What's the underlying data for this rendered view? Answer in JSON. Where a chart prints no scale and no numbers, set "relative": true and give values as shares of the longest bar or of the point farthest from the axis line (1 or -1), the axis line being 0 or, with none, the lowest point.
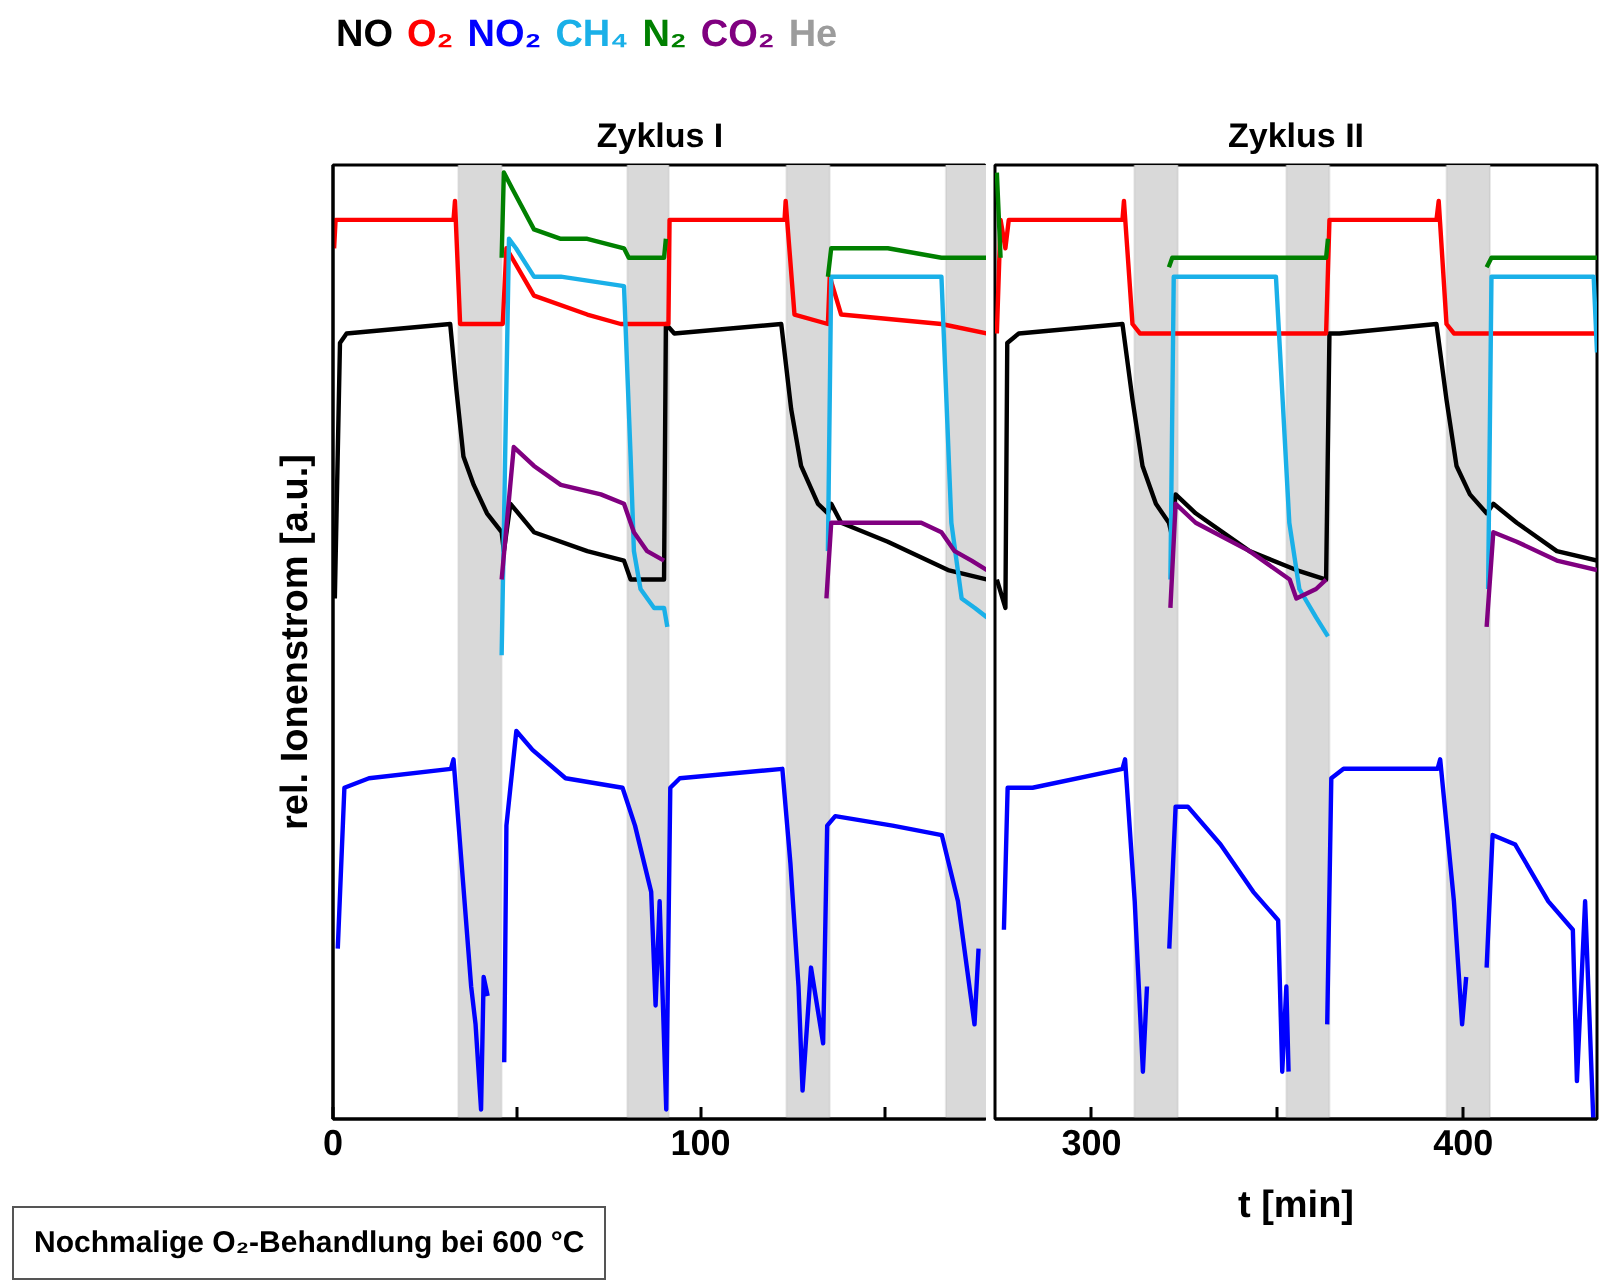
{
  "chart_data": [
    {
      "type": "line",
      "title": "Zyklus I",
      "ylabel": "rel. Ionenstrom [a.u.]",
      "relative": true,
      "legend": "top left",
      "xlim": [
        0,
        178
      ],
      "xticks": [
        0,
        {
          "value": 50,
          "label": null
        },
        100,
        {
          "value": 150,
          "label": null
        }
      ],
      "annotations": [
        "Nochmalige O₂-Behandlung bei 600 °C"
      ],
      "bands": [
        {
          "axis": "x",
          "from": 34.1,
          "to": 45.9,
          "label": "He",
          "color": "#d9d9d9"
        },
        {
          "axis": "x",
          "from": 80.1,
          "to": 91.4,
          "color": "#d9d9d9"
        },
        {
          "axis": "x",
          "from": 123.4,
          "to": 135.2,
          "color": "#d9d9d9"
        },
        {
          "axis": "x",
          "from": 166.8,
          "to": 178,
          "color": "#d9d9d9"
        }
      ],
      "series": [
        {
          "name": "NO",
          "color": "#000000",
          "x": [
            0.5,
            1.9,
            3.7,
            31.9,
            33.6,
            35.5,
            38.3,
            41.9,
            45.9,
            46.5,
            48.3,
            54.7,
            69.2,
            79.2,
            81,
            90.1,
            90.6,
            92.9,
            122,
            124.7,
            127.4,
            132,
            134.7,
            135.6,
            138.3,
            151,
            167.4,
            178
          ],
          "values": [
            0.55,
            0.82,
            0.83,
            0.84,
            0.77,
            0.7,
            0.67,
            0.64,
            0.62,
            0.6,
            0.65,
            0.62,
            0.6,
            0.59,
            0.57,
            0.57,
            0.84,
            0.83,
            0.84,
            0.75,
            0.69,
            0.65,
            0.64,
            0.65,
            0.63,
            0.61,
            0.58,
            0.57
          ]
        },
        {
          "name": "O₂",
          "color": "#ff0000",
          "x": [
            0.3,
            0.7,
            32.8,
            33.2,
            34.6,
            46.2,
            47.2,
            54.7,
            69.2,
            78.3,
            81.9,
            91.3,
            91.6,
            92.9,
            122.9,
            123.2,
            125.6,
            134.7,
            135.2,
            138.3,
            165.6,
            178
          ],
          "values": [
            0.92,
            0.95,
            0.95,
            0.97,
            0.84,
            0.84,
            0.92,
            0.87,
            0.85,
            0.84,
            0.84,
            0.84,
            0.95,
            0.95,
            0.95,
            0.97,
            0.85,
            0.84,
            0.89,
            0.85,
            0.84,
            0.83
          ]
        },
        {
          "name": "NO₂",
          "color": "#0000ff",
          "x": [
            1.3,
            3.1,
            9.8,
            32.1,
            32.8,
            35.4,
            37.6,
            38.8,
            40.3,
            41,
            42.1,
            44,
            46.6,
            47.2,
            49.9,
            54.3,
            63.3,
            78.8,
            82.2,
            86.6,
            87.8,
            88.9,
            90.7,
            91.8,
            94.4,
            122.3,
            124.5,
            126.7,
            127.8,
            130.1,
            133.4,
            134.5,
            136.7,
            152.3,
            165.7,
            170.1,
            174.6,
            175.7
          ],
          "values": [
            0.18,
            0.35,
            0.36,
            0.37,
            0.38,
            0.25,
            0.14,
            0.1,
            0.01,
            0.15,
            0.13,
            null,
            0.06,
            0.31,
            0.41,
            0.39,
            0.36,
            0.35,
            0.31,
            0.24,
            0.12,
            0.23,
            0.01,
            0.35,
            0.36,
            0.37,
            0.27,
            0.14,
            0.03,
            0.16,
            0.08,
            0.31,
            0.32,
            0.31,
            0.3,
            0.23,
            0.1,
            0.18
          ]
        },
        {
          "name": "CH₄",
          "color": "#1ab0e8",
          "x": [
            45.9,
            47.9,
            49.8,
            54.7,
            62,
            79.2,
            81,
            81.9,
            83.7,
            87.4,
            90.1,
            91,
            100,
            134.7,
            135.6,
            165.6,
            168.3,
            171.1,
            174.7,
            178
          ],
          "values": [
            0.49,
            0.93,
            0.92,
            0.89,
            0.89,
            0.88,
            0.7,
            0.6,
            0.56,
            0.54,
            0.54,
            0.52,
            null,
            0.6,
            0.89,
            0.89,
            0.63,
            0.55,
            0.54,
            0.53
          ]
        },
        {
          "name": "N₂",
          "color": "#008000",
          "x": [
            45.9,
            46.5,
            49.2,
            54.7,
            62,
            69.2,
            79.2,
            80.5,
            90.1,
            90.6,
            100,
            134.7,
            135.6,
            151,
            165.6,
            167.4,
            178
          ],
          "values": [
            0.91,
            1.0,
            0.98,
            0.94,
            0.93,
            0.93,
            0.92,
            0.91,
            0.91,
            0.93,
            null,
            0.89,
            0.92,
            0.92,
            0.91,
            0.91,
            0.91
          ]
        },
        {
          "name": "CO₂",
          "color": "#800080",
          "x": [
            45.9,
            49.2,
            54.7,
            62,
            72.9,
            79.2,
            81.9,
            85.5,
            90.1,
            100,
            134.3,
            135.6,
            142,
            160.1,
            165.6,
            169.2,
            173.8,
            178
          ],
          "values": [
            0.57,
            0.71,
            0.69,
            0.67,
            0.66,
            0.65,
            0.62,
            0.6,
            0.59,
            null,
            0.55,
            0.63,
            0.63,
            0.63,
            0.62,
            0.6,
            0.59,
            0.58
          ]
        }
      ]
    },
    {
      "type": "line",
      "title": "Zyklus II",
      "xlabel": "t [min]",
      "relative": true,
      "xlim": [
        274,
        436
      ],
      "xticks": [
        300,
        {
          "value": 350,
          "label": null
        },
        400
      ],
      "bands": [
        {
          "axis": "x",
          "from": 311.5,
          "to": 323.2,
          "color": "#d9d9d9"
        },
        {
          "axis": "x",
          "from": 352.4,
          "to": 364,
          "color": "#d9d9d9"
        },
        {
          "axis": "x",
          "from": 395.5,
          "to": 407.2,
          "color": "#d9d9d9"
        }
      ],
      "series": [
        {
          "color": "#000000",
          "x": [
            274.5,
            276.8,
            277.3,
            280.4,
            308.3,
            311,
            313.7,
            317.3,
            320.8,
            321.4,
            322.6,
            328,
            342.5,
            355.1,
            363.1,
            364,
            366.7,
            392.8,
            395.5,
            398.2,
            401.8,
            406.3,
            408.1,
            414.4,
            425.2,
            436
          ],
          "values": [
            0.57,
            0.54,
            0.82,
            0.83,
            0.84,
            0.76,
            0.69,
            0.65,
            0.63,
            0.62,
            0.66,
            0.64,
            0.6,
            0.58,
            0.57,
            0.83,
            0.83,
            0.84,
            0.76,
            0.69,
            0.66,
            0.64,
            0.65,
            0.63,
            0.6,
            0.59
          ]
        },
        {
          "color": "#ff0000",
          "x": [
            274.5,
            275.5,
            276.8,
            277.7,
            308.3,
            308.7,
            311,
            313,
            363.1,
            364,
            366.7,
            392.8,
            393.4,
            395.5,
            397.5,
            436
          ],
          "values": [
            0.83,
            0.95,
            0.92,
            0.95,
            0.95,
            0.97,
            0.84,
            0.83,
            0.83,
            0.95,
            0.95,
            0.95,
            0.97,
            0.84,
            0.83,
            0.83
          ]
        },
        {
          "color": "#0000ff",
          "x": [
            276.4,
            277.4,
            284.1,
            308.3,
            309,
            311.6,
            313.8,
            314.9,
            316,
            320.9,
            322.6,
            325.9,
            334.7,
            343.5,
            350.2,
            351.3,
            352.4,
            353,
            358,
            363.4,
            364.5,
            367.8,
            393.1,
            393.8,
            397.5,
            399.7,
            400.8,
            403,
            406.3,
            407.9,
            414,
            422.9,
            429.5,
            430.6,
            432.8,
            435
          ],
          "values": [
            0.2,
            0.35,
            0.35,
            0.37,
            0.38,
            0.23,
            0.05,
            0.14,
            null,
            0.18,
            0.33,
            0.33,
            0.29,
            0.24,
            0.21,
            0.05,
            0.14,
            0.05,
            null,
            0.1,
            0.36,
            0.37,
            0.37,
            0.38,
            0.23,
            0.1,
            0.15,
            null,
            0.16,
            0.3,
            0.29,
            0.23,
            0.2,
            0.04,
            0.23,
            0.0
          ]
        },
        {
          "color": "#1ab0e8",
          "x": [
            321.2,
            322.1,
            349.6,
            353.2,
            355.9,
            360.4,
            363.6,
            364,
            406.7,
            407.6,
            435.1,
            436
          ],
          "values": [
            0.57,
            0.89,
            0.89,
            0.63,
            0.56,
            0.53,
            0.51,
            null,
            0.56,
            0.89,
            0.89,
            0.81
          ]
        },
        {
          "color": "#008000",
          "x": [
            274.5,
            275.5,
            277,
            320.8,
            321.7,
            342.5,
            363.1,
            363.6,
            364.5,
            406.3,
            407.6,
            436
          ],
          "values": [
            1.0,
            0.91,
            null,
            0.9,
            0.91,
            0.91,
            0.91,
            0.93,
            null,
            0.9,
            0.91,
            0.91
          ]
        },
        {
          "color": "#800080",
          "x": [
            321.2,
            322.6,
            328,
            342.5,
            353.3,
            355.1,
            360.4,
            363.1,
            364,
            406.3,
            408.1,
            414.4,
            425.2,
            436
          ],
          "values": [
            0.54,
            0.65,
            0.63,
            0.6,
            0.57,
            0.55,
            0.56,
            0.57,
            null,
            0.52,
            0.62,
            0.61,
            0.59,
            0.58
          ]
        }
      ]
    }
  ]
}
